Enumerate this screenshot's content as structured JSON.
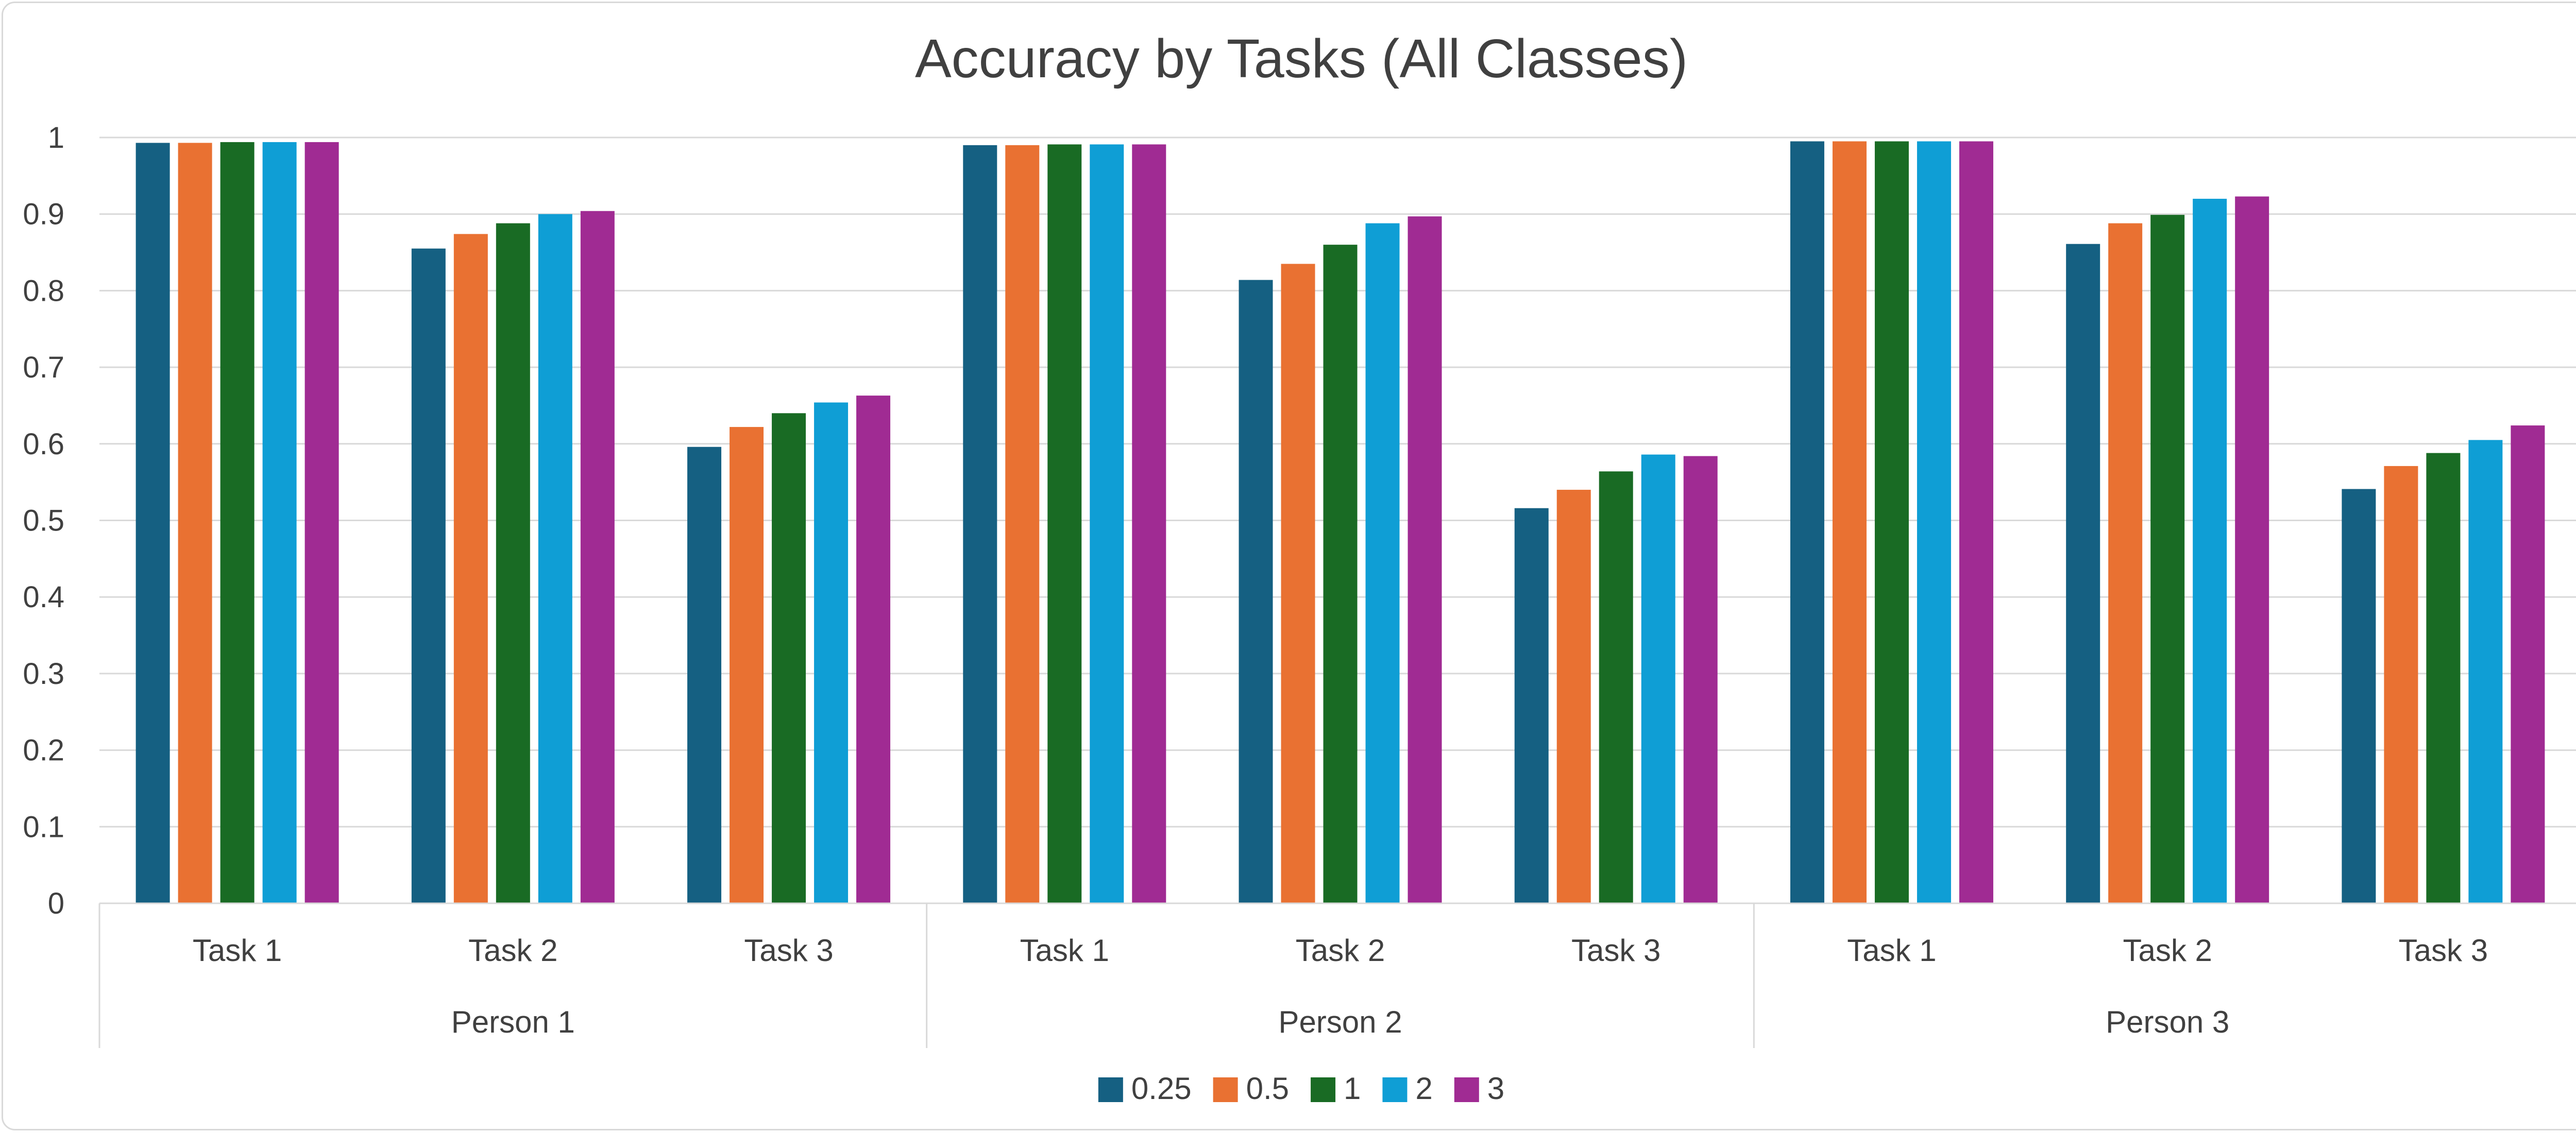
{
  "chart_data": {
    "type": "bar",
    "title": "Accuracy by Tasks (All Classes)",
    "xlabel": "",
    "ylabel": "",
    "ylim": [
      0,
      1
    ],
    "yticks": [
      "0",
      "0.1",
      "0.2",
      "0.3",
      "0.4",
      "0.5",
      "0.6",
      "0.7",
      "0.8",
      "0.9",
      "1"
    ],
    "grid": true,
    "legend_position": "bottom",
    "groups": [
      "Person 1",
      "Person 2",
      "Person 3"
    ],
    "categories": [
      "Task 1",
      "Task 2",
      "Task 3",
      "Task 1",
      "Task 2",
      "Task 3",
      "Task 1",
      "Task 2",
      "Task 3"
    ],
    "series": [
      {
        "name": "0.25",
        "color": "#156082",
        "values": [
          0.993,
          0.855,
          0.596,
          0.99,
          0.814,
          0.516,
          0.995,
          0.861,
          0.541
        ]
      },
      {
        "name": "0.5",
        "color": "#E97132",
        "values": [
          0.993,
          0.874,
          0.622,
          0.99,
          0.835,
          0.54,
          0.995,
          0.888,
          0.571
        ]
      },
      {
        "name": "1",
        "color": "#196B24",
        "values": [
          0.994,
          0.888,
          0.64,
          0.991,
          0.86,
          0.564,
          0.995,
          0.899,
          0.588
        ]
      },
      {
        "name": "2",
        "color": "#0F9ED5",
        "values": [
          0.994,
          0.9,
          0.654,
          0.991,
          0.888,
          0.586,
          0.995,
          0.92,
          0.605
        ]
      },
      {
        "name": "3",
        "color": "#A02B93",
        "values": [
          0.994,
          0.904,
          0.663,
          0.991,
          0.897,
          0.584,
          0.995,
          0.923,
          0.624
        ]
      }
    ]
  }
}
